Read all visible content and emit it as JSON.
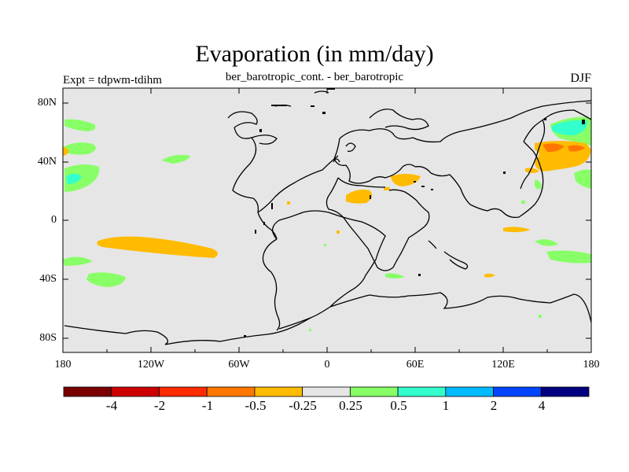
{
  "plot": {
    "title": "Evaporation (in mm/day)",
    "subtitle": "ber_barotropic_cont. - ber_barotropic",
    "left_label": "Expt = tdpwm-tdihm",
    "right_label": "DJF"
  },
  "axes": {
    "lat_ticks": [
      "80N",
      "40N",
      "0",
      "40S",
      "80S"
    ],
    "lon_ticks": [
      "180",
      "120W",
      "60W",
      "0",
      "60E",
      "120E",
      "180"
    ]
  },
  "colorbar": {
    "labels": [
      "-4",
      "-2",
      "-1",
      "-0.5",
      "-0.25",
      "0.25",
      "0.5",
      "1",
      "2",
      "4"
    ],
    "colors": [
      "#7a0000",
      "#cc0000",
      "#ff2a00",
      "#ff7700",
      "#ffbb00",
      "#e6e6e6",
      "#88ff66",
      "#33ffcc",
      "#00bbff",
      "#0044ff",
      "#000080"
    ]
  },
  "colors": {
    "background_field": "#e6e6e6",
    "positive_low": "#88ff66",
    "positive_mid": "#33ffcc",
    "negative_low": "#ffbb00",
    "negative_mid": "#ff7700"
  }
}
